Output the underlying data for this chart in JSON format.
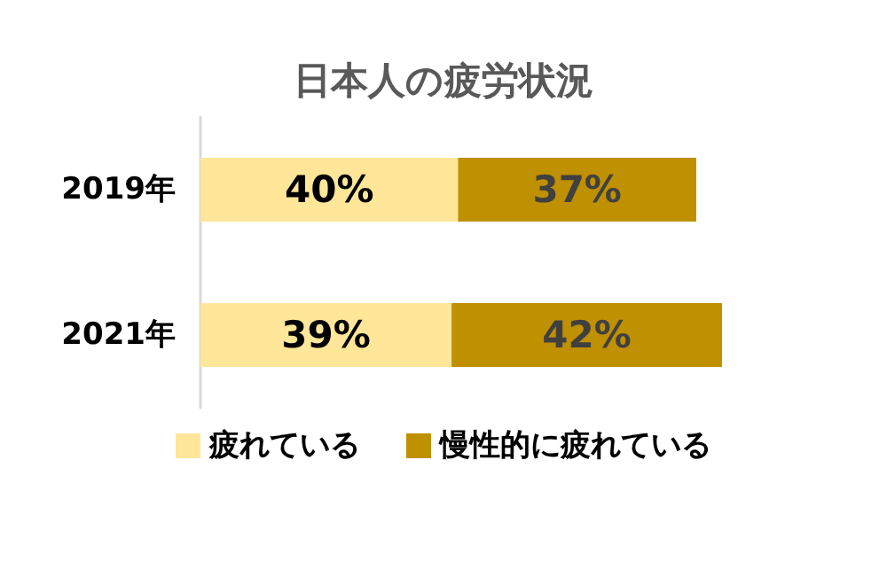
{
  "chart_data": {
    "type": "bar",
    "title": "日本人の疲労状況",
    "orientation": "horizontal",
    "stacked": true,
    "categories": [
      "2019年",
      "2021年"
    ],
    "series": [
      {
        "name": "疲れている",
        "color": "#ffe699",
        "values": [
          40,
          39
        ],
        "value_labels": [
          "40%",
          "39%"
        ]
      },
      {
        "name": "慢性的に疲れている",
        "color": "#bf9000",
        "values": [
          37,
          42
        ],
        "value_labels": [
          "37%",
          "42%"
        ]
      }
    ],
    "tick_labels": "y",
    "legend": "bottom",
    "grid": false
  }
}
